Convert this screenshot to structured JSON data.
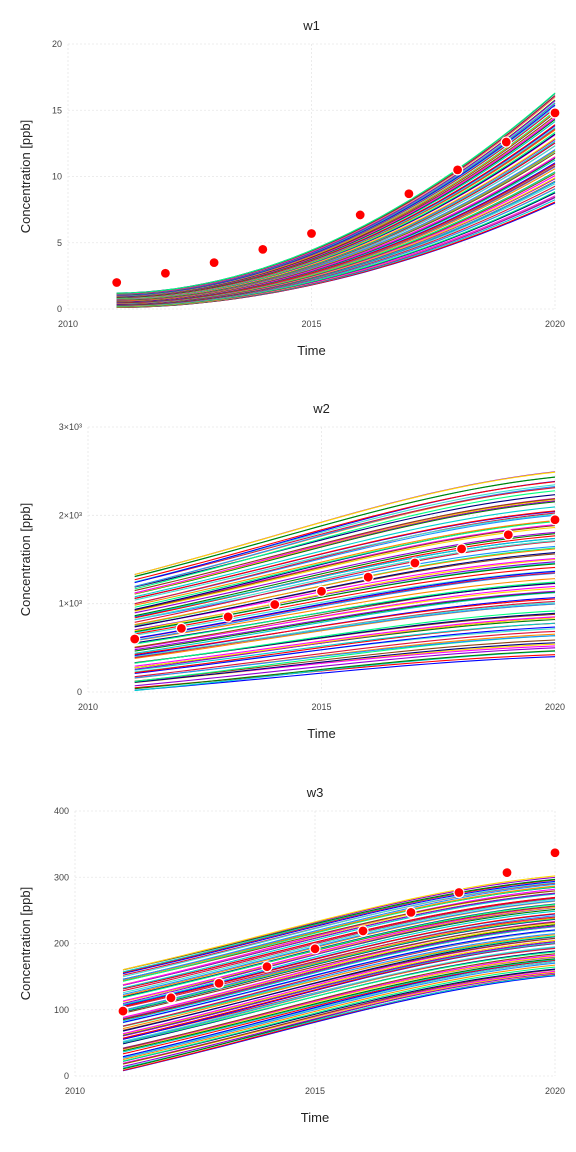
{
  "chart_data": [
    {
      "type": "line",
      "title": "w1",
      "xlabel": "Time",
      "ylabel": "Concentration [ppb]",
      "xlim": [
        2010,
        2020
      ],
      "ylim": [
        0,
        20
      ],
      "xticks": [
        {
          "value": 2010,
          "label": "2010"
        },
        {
          "value": 2015,
          "label": "2015"
        },
        {
          "value": 2020,
          "label": "2020"
        }
      ],
      "yticks": [
        {
          "value": 0,
          "label": "0"
        },
        {
          "value": 5,
          "label": "5"
        },
        {
          "value": 10,
          "label": "10"
        },
        {
          "value": 15,
          "label": "15"
        },
        {
          "value": 20,
          "label": "20"
        }
      ],
      "grid": true,
      "ensemble": {
        "count": 80,
        "x": [
          2011,
          2020
        ],
        "shape": "convex",
        "start_range": [
          0.1,
          1.2
        ],
        "end_range": [
          8.0,
          16.3
        ]
      },
      "observations": {
        "x": [
          2011,
          2012,
          2013,
          2014,
          2015,
          2016,
          2017,
          2018,
          2019,
          2020
        ],
        "y": [
          2.0,
          2.7,
          3.5,
          4.5,
          5.7,
          7.1,
          8.7,
          10.5,
          12.6,
          14.8
        ],
        "color": "#ff0000"
      }
    },
    {
      "type": "line",
      "title": "w2",
      "xlabel": "Time",
      "ylabel": "Concentration [ppb]",
      "xlim": [
        2010,
        2020
      ],
      "ylim": [
        0,
        3000
      ],
      "xticks": [
        {
          "value": 2010,
          "label": "2010"
        },
        {
          "value": 2015,
          "label": "2015"
        },
        {
          "value": 2020,
          "label": "2020"
        }
      ],
      "yticks": [
        {
          "value": 0,
          "label": "0"
        },
        {
          "value": 1000,
          "label": "1×10³"
        },
        {
          "value": 2000,
          "label": "2×10³"
        },
        {
          "value": 3000,
          "label": "3×10³"
        }
      ],
      "grid": true,
      "ensemble": {
        "count": 90,
        "x": [
          2011,
          2020
        ],
        "shape": "concave",
        "start_range": [
          10,
          1330
        ],
        "end_range": [
          400,
          2500
        ]
      },
      "observations": {
        "x": [
          2011,
          2012,
          2013,
          2014,
          2015,
          2016,
          2017,
          2018,
          2019,
          2020
        ],
        "y": [
          600,
          720,
          850,
          990,
          1140,
          1300,
          1460,
          1620,
          1780,
          1950
        ],
        "color": "#ff0000"
      }
    },
    {
      "type": "line",
      "title": "w3",
      "xlabel": "Time",
      "ylabel": "Concentration [ppb]",
      "xlim": [
        2010,
        2020
      ],
      "ylim": [
        0,
        400
      ],
      "xticks": [
        {
          "value": 2010,
          "label": "2010"
        },
        {
          "value": 2015,
          "label": "2015"
        },
        {
          "value": 2020,
          "label": "2020"
        }
      ],
      "yticks": [
        {
          "value": 0,
          "label": "0"
        },
        {
          "value": 100,
          "label": "100"
        },
        {
          "value": 200,
          "label": "200"
        },
        {
          "value": 300,
          "label": "300"
        },
        {
          "value": 400,
          "label": "400"
        }
      ],
      "grid": true,
      "ensemble": {
        "count": 90,
        "x": [
          2011,
          2020
        ],
        "shape": "concave",
        "start_range": [
          8,
          162
        ],
        "end_range": [
          150,
          302
        ]
      },
      "observations": {
        "x": [
          2011,
          2012,
          2013,
          2014,
          2015,
          2016,
          2017,
          2018,
          2019,
          2020
        ],
        "y": [
          98,
          118,
          140,
          165,
          192,
          219,
          247,
          277,
          307,
          337
        ],
        "color": "#ff0000"
      }
    }
  ],
  "palette": [
    "#0000ff",
    "#ff0000",
    "#00cfcf",
    "#008000",
    "#9400d3",
    "#ffd700",
    "#ff00ff",
    "#8b4513",
    "#000080",
    "#00ff7f",
    "#ff8c00",
    "#1e90ff",
    "#dc143c",
    "#40e0d0"
  ]
}
